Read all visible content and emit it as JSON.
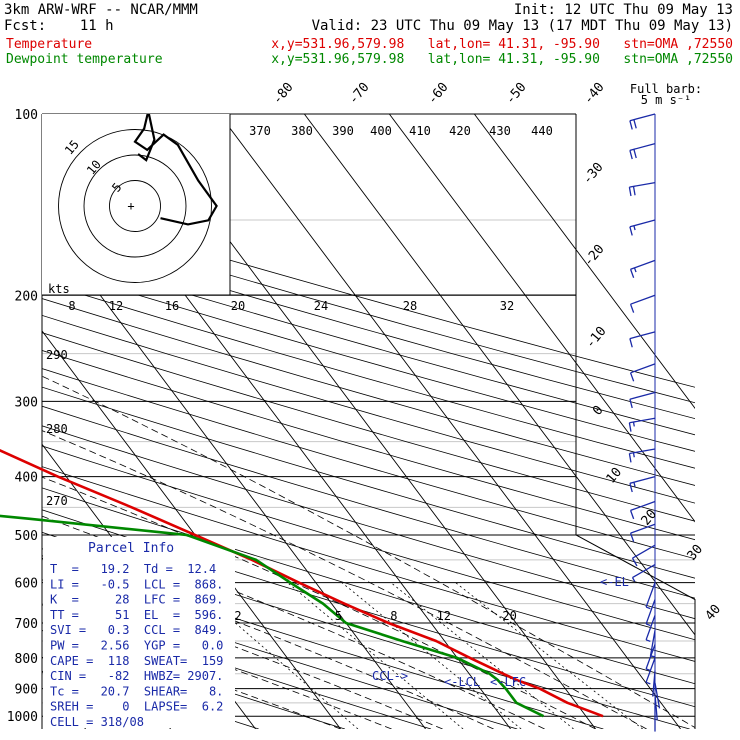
{
  "header": {
    "line1_left": "3km ARW-WRF -- NCAR/MMM",
    "line1_right": "Init: 12 UTC Thu 09 May 13",
    "line2_left": "Fcst:    11 h",
    "line2_right": "Valid: 23 UTC Thu 09 May 13 (17 MDT Thu 09 May 13)",
    "temp_label": "Temperature",
    "dew_label": "Dewpoint temperature",
    "loc_info": "x,y=531.96,579.98   lat,lon= 41.31, -95.90   stn=OMA ,72550"
  },
  "colors": {
    "temperature": "#dd0000",
    "dewpoint": "#008800",
    "parcel": "#1a2aa8",
    "wind": "#1a2aa8",
    "grid": "#000000"
  },
  "wind_legend": {
    "line1": "Full barb:",
    "line2": "5 m s⁻¹"
  },
  "hodograph": {
    "rings": [
      "5",
      "10",
      "15"
    ],
    "x_label": "kts",
    "x_ticks": [
      "8",
      "12",
      "16",
      "20",
      "24",
      "28",
      "32"
    ],
    "theta_ticks": [
      "370",
      "380",
      "390",
      "400",
      "410",
      "420",
      "430",
      "440"
    ],
    "side_ticks": [
      "290",
      "280",
      "270"
    ]
  },
  "parcel_info": {
    "title": "Parcel Info",
    "rows": [
      "T  =   19.2  Td =  12.4",
      "LI =   -0.5  LCL =  868.",
      "K  =     28  LFC =  869.",
      "TT =     51  EL  =  596.",
      "SVI =   0.3  CCL =  849.",
      "PW =   2.56  YGP =   0.0",
      "CAPE =  118  SWEAT=  159",
      "CIN =   -82  HWBZ= 2907.",
      "Tc =   20.7  SHEAR=   8.",
      "SREH =    0  LAPSE=  6.2",
      "CELL = 318/08"
    ]
  },
  "chart_data": {
    "type": "line",
    "title": "",
    "xlabel": "",
    "ylabel": "",
    "y_axis": "pressure (hPa), log scale",
    "ylim": [
      1000,
      100
    ],
    "pressure_ticks": [
      "100",
      "200",
      "300",
      "400",
      "500",
      "600",
      "700",
      "800",
      "900",
      "1000"
    ],
    "isotherm_labels": [
      "-80",
      "-70",
      "-60",
      "-50",
      "-40",
      "-30",
      "-20",
      "-10",
      "0",
      "10",
      "20",
      "30",
      "40"
    ],
    "mixing_ratio_labels": [
      "2",
      "5",
      "8",
      "12",
      "20"
    ],
    "level_markers": {
      "ccl": "CCL->",
      "lcl": "<-LCL",
      "lfc": "<-LFC",
      "el": "<-EL"
    },
    "series": [
      {
        "name": "Temperature",
        "pressure": [
          1000,
          950,
          900,
          870,
          850,
          800,
          750,
          700,
          650,
          600,
          550,
          500,
          450,
          400,
          350,
          300,
          250,
          225,
          200,
          175,
          150,
          125,
          100
        ],
        "values": [
          22,
          19,
          17,
          15,
          14,
          11.5,
          9,
          5,
          1.5,
          -2,
          -5.5,
          -10,
          -15,
          -21,
          -27,
          -35,
          -44,
          -51,
          -56,
          -57,
          -58,
          -59,
          -60
        ]
      },
      {
        "name": "Dewpoint temperature",
        "pressure": [
          1000,
          950,
          900,
          870,
          850,
          800,
          750,
          700,
          650,
          600,
          550,
          500,
          470,
          450,
          420,
          400,
          350,
          300,
          250,
          200,
          150,
          125,
          100
        ],
        "values": [
          15,
          13,
          13,
          12.8,
          12.4,
          10,
          5,
          0,
          -1,
          -3,
          -5,
          -11,
          -28,
          -41,
          -38,
          -30,
          -31,
          -39,
          -49,
          -58,
          -69,
          -72,
          -76
        ]
      }
    ],
    "wind_barbs": [
      {
        "p": 960,
        "ws": 1,
        "wd": 180
      },
      {
        "p": 920,
        "ws": 2,
        "wd": 175
      },
      {
        "p": 880,
        "ws": 3,
        "wd": 170
      },
      {
        "p": 840,
        "ws": 4,
        "wd": 185
      },
      {
        "p": 800,
        "ws": 5,
        "wd": 200
      },
      {
        "p": 760,
        "ws": 6,
        "wd": 200
      },
      {
        "p": 720,
        "ws": 7,
        "wd": 190
      },
      {
        "p": 680,
        "ws": 8,
        "wd": 200
      },
      {
        "p": 640,
        "ws": 8,
        "wd": 200
      },
      {
        "p": 600,
        "ws": 7,
        "wd": 200
      },
      {
        "p": 560,
        "ws": 8,
        "wd": 240
      },
      {
        "p": 520,
        "ws": 10,
        "wd": 240
      },
      {
        "p": 480,
        "ws": 12,
        "wd": 250
      },
      {
        "p": 440,
        "ws": 14,
        "wd": 250
      },
      {
        "p": 400,
        "ws": 16,
        "wd": 255
      },
      {
        "p": 360,
        "ws": 18,
        "wd": 260
      },
      {
        "p": 320,
        "ws": 16,
        "wd": 260
      },
      {
        "p": 290,
        "ws": 13,
        "wd": 255
      },
      {
        "p": 260,
        "ws": 11,
        "wd": 250
      },
      {
        "p": 230,
        "ws": 10,
        "wd": 255
      },
      {
        "p": 200,
        "ws": 12,
        "wd": 250
      },
      {
        "p": 175,
        "ws": 16,
        "wd": 250
      },
      {
        "p": 150,
        "ws": 18,
        "wd": 255
      },
      {
        "p": 130,
        "ws": 20,
        "wd": 260
      },
      {
        "p": 112,
        "ws": 22,
        "wd": 255
      },
      {
        "p": 100,
        "ws": 24,
        "wd": 255
      }
    ],
    "hodograph_points": [
      {
        "u": 2.5,
        "v": 1.2
      },
      {
        "u": 5.2,
        "v": 1.8
      },
      {
        "u": 7.2,
        "v": 1.4
      },
      {
        "u": 8,
        "v": 0
      },
      {
        "u": 6.2,
        "v": -2.5
      },
      {
        "u": 4.2,
        "v": -6
      },
      {
        "u": 2.8,
        "v": -7
      },
      {
        "u": 1.2,
        "v": -5.5
      },
      {
        "u": 0,
        "v": -6.3
      },
      {
        "u": 0.9,
        "v": -7.6
      },
      {
        "u": 1.3,
        "v": -9.3
      },
      {
        "u": 1.9,
        "v": -6.5
      },
      {
        "u": 1.1,
        "v": -4.5
      },
      {
        "u": 0.3,
        "v": -5.1
      }
    ]
  }
}
